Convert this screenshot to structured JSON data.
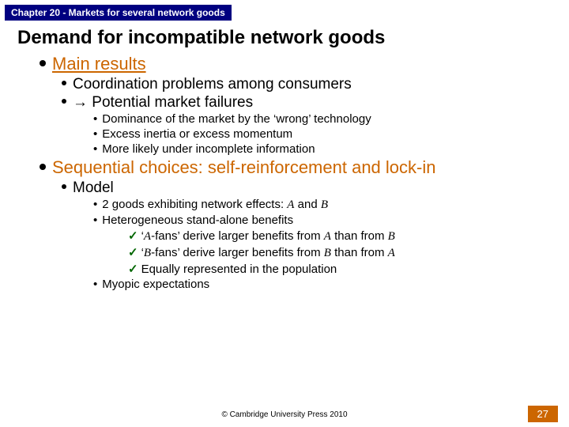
{
  "colors": {
    "chapter_bg": "#000080",
    "chapter_fg": "#ffffff",
    "accent": "#cc6600",
    "body_text": "#000000",
    "check": "#006600",
    "background": "#ffffff"
  },
  "fonts": {
    "title_size": 24,
    "l1_size": 22,
    "l2_size": 19,
    "l3_size": 15,
    "l4_size": 15,
    "chapter_size": 12,
    "footer_size": 10
  },
  "chapter": "Chapter 20 - Markets for several network goods",
  "title": "Demand for incompatible network goods",
  "main_results_label": "Main results",
  "coord": "Coordination problems among consumers",
  "arrow": "→",
  "potential": " Potential market failures",
  "sub1": "Dominance of the market by the ‘wrong’ technology",
  "sub2": "Excess inertia or excess momentum",
  "sub3": "More likely under incomplete information",
  "seq_a": "Sequential choices: ",
  "seq_b": "self-reinforcement and lock-in",
  "model": "Model",
  "m1a": "2 goods exhibiting network effects: ",
  "A": "A",
  "and": " and ",
  "B": "B",
  "m2": "Heterogeneous stand-alone benefits",
  "m2a_pre": "‘",
  "m2a_mid": "-fans’ derive larger benefits from ",
  "m2a_than": " than from ",
  "m2c": "Equally represented in the population",
  "m3": "Myopic expectations",
  "copyright": "© Cambridge University Press 2010",
  "page": "27"
}
